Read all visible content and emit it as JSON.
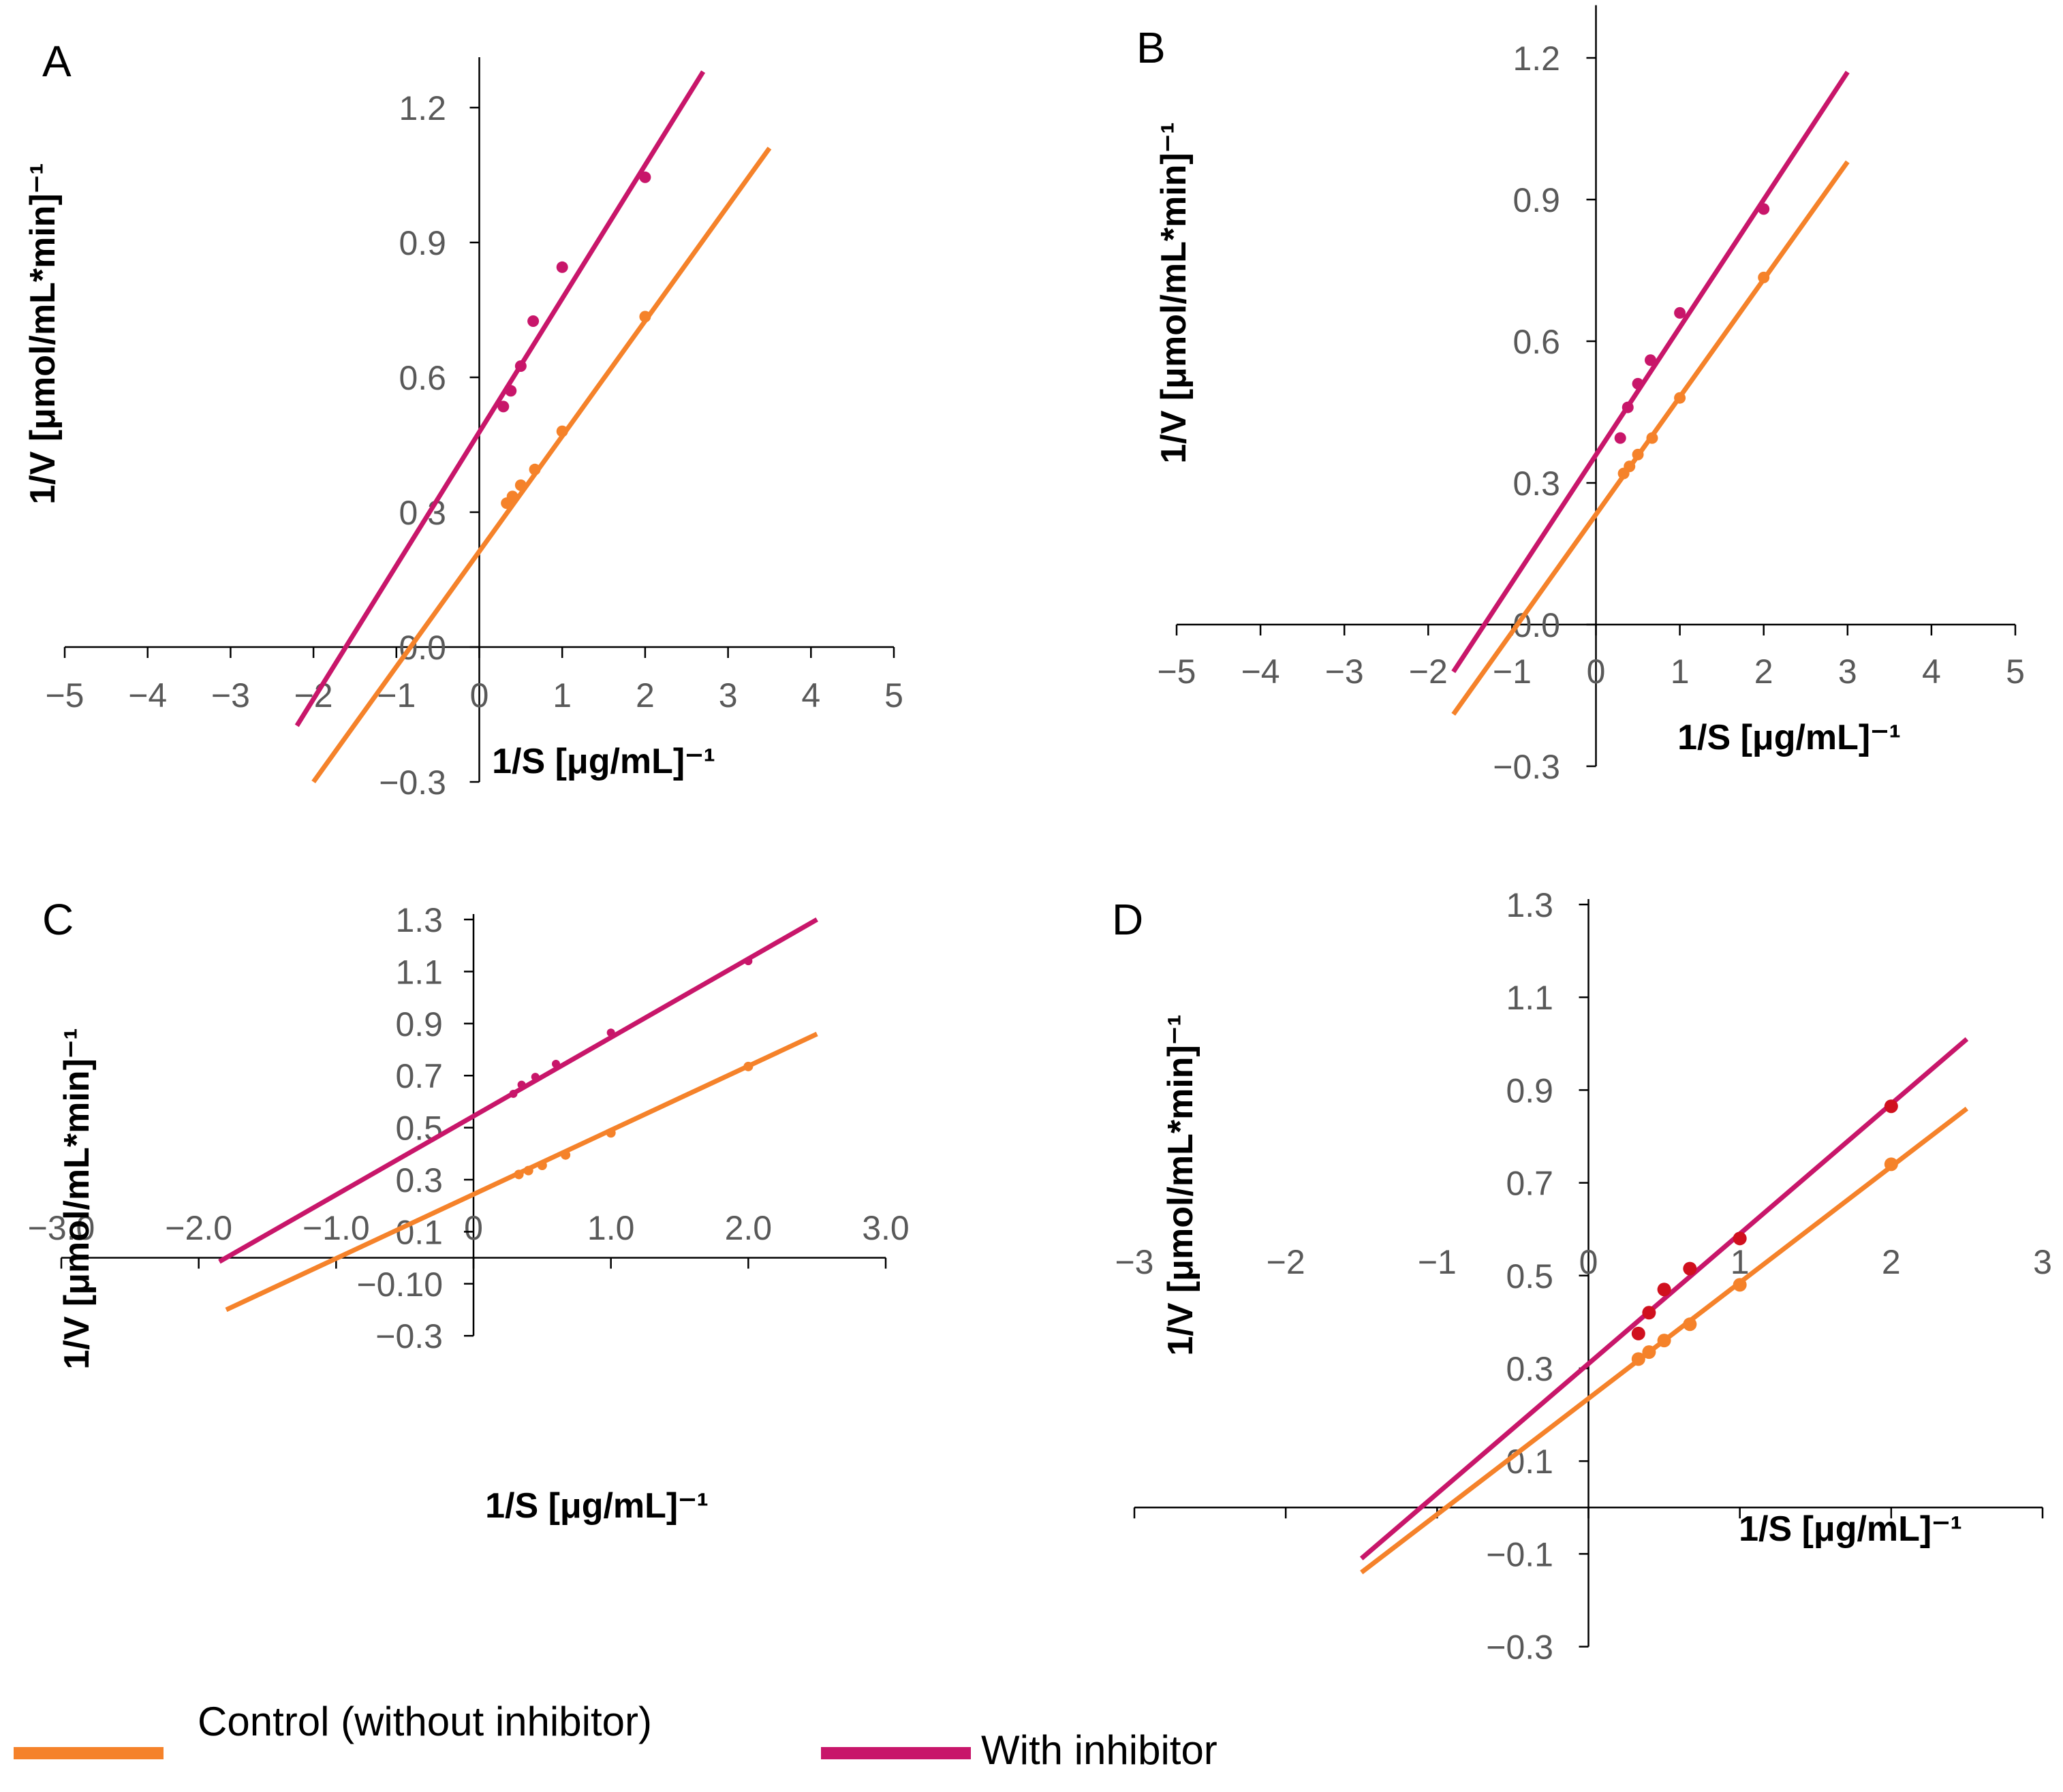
{
  "colors": {
    "control": "#F5822A",
    "inhibitor": "#C8166A",
    "inhibitor_points_d": "#D0101E",
    "axis": "#000000",
    "tick_text": "#595959"
  },
  "legend": {
    "control_label": "Control (without inhibitor)",
    "inhibitor_label": "With inhibitor"
  },
  "chart_data": [
    {
      "panel": "A",
      "type": "scatter",
      "xlabel": "1/S [μg/mL]⁻¹",
      "ylabel": "1/V [μmol/mL*min]⁻¹",
      "xlim": [
        -5,
        5
      ],
      "ylim": [
        -0.3,
        1.3
      ],
      "xticks": [
        -5,
        -4,
        -3,
        -2,
        -1,
        0,
        1,
        2,
        3,
        4,
        5
      ],
      "xtick_labels": [
        "−5",
        "−4",
        "−3",
        "−2",
        "−1",
        "0",
        "1",
        "2",
        "3",
        "4",
        "5"
      ],
      "yticks": [
        -0.3,
        0.0,
        0.3,
        0.6,
        0.9,
        1.2
      ],
      "ytick_labels": [
        "−0.3",
        "0.0",
        "0.3",
        "0.6",
        "0.9",
        "1.2"
      ],
      "series": [
        {
          "name": "Control (without inhibitor)",
          "color": "#F5822A",
          "x": [
            0.33,
            0.4,
            0.5,
            0.67,
            1.0,
            2.0
          ],
          "y": [
            0.32,
            0.335,
            0.36,
            0.395,
            0.48,
            0.735
          ],
          "line": {
            "x": [
              -2.0,
              3.5
            ],
            "y": [
              -0.3,
              1.11
            ]
          }
        },
        {
          "name": "With inhibitor",
          "color": "#C8166A",
          "x": [
            0.29,
            0.38,
            0.5,
            0.65,
            1.0,
            2.0
          ],
          "y": [
            0.535,
            0.57,
            0.625,
            0.725,
            0.845,
            1.045
          ],
          "line": {
            "x": [
              -2.2,
              2.7
            ],
            "y": [
              -0.175,
              1.28
            ]
          }
        }
      ]
    },
    {
      "panel": "B",
      "type": "scatter",
      "xlabel": "1/S [μg/mL]⁻¹",
      "ylabel": "1/V [μmol/mL*min]⁻¹",
      "xlim": [
        -5,
        5
      ],
      "ylim": [
        -0.3,
        1.3
      ],
      "xticks": [
        -5,
        -4,
        -3,
        -2,
        -1,
        0,
        1,
        2,
        3,
        4,
        5
      ],
      "xtick_labels": [
        "−5",
        "−4",
        "−3",
        "−2",
        "−1",
        "0",
        "1",
        "2",
        "3",
        "4",
        "5"
      ],
      "yticks": [
        -0.3,
        0.0,
        0.3,
        0.6,
        0.9,
        1.2
      ],
      "ytick_labels": [
        "−0.3",
        "0.0",
        "0.3",
        "0.6",
        "0.9",
        "1.2"
      ],
      "series": [
        {
          "name": "Control (without inhibitor)",
          "color": "#F5822A",
          "x": [
            0.33,
            0.4,
            0.5,
            0.67,
            1.0,
            2.0
          ],
          "y": [
            0.32,
            0.335,
            0.36,
            0.395,
            0.48,
            0.735
          ],
          "line": {
            "x": [
              -1.7,
              3.0
            ],
            "y": [
              -0.19,
              0.98
            ]
          }
        },
        {
          "name": "With inhibitor",
          "color": "#C8166A",
          "x": [
            0.29,
            0.38,
            0.5,
            0.65,
            1.0,
            2.0
          ],
          "y": [
            0.395,
            0.46,
            0.51,
            0.56,
            0.66,
            0.88
          ],
          "line": {
            "x": [
              -1.7,
              3.0
            ],
            "y": [
              -0.1,
              1.17
            ]
          }
        }
      ]
    },
    {
      "panel": "C",
      "type": "scatter",
      "xlabel": "1/S [μg/mL]⁻¹",
      "ylabel": "1/V  [μmol/mL*min]⁻¹",
      "xlim": [
        -3.0,
        3.0
      ],
      "ylim": [
        -0.3,
        1.3
      ],
      "xticks": [
        -3,
        -2,
        -1,
        0,
        1,
        2,
        3
      ],
      "xtick_labels": [
        "−3.0",
        "−2.0",
        "−1.0",
        "0",
        "1.0",
        "2.0",
        "3.0"
      ],
      "yticks": [
        -0.3,
        -0.1,
        0.1,
        0.3,
        0.5,
        0.7,
        0.9,
        1.1,
        1.3
      ],
      "ytick_labels": [
        "−0.3",
        "−0.10",
        "0.1",
        "0.3",
        "0.5",
        "0.7",
        "0.9",
        "1.1",
        "1.3"
      ],
      "series": [
        {
          "name": "Control (without inhibitor)",
          "color": "#F5822A",
          "x": [
            0.33,
            0.4,
            0.5,
            0.67,
            1.0,
            2.0
          ],
          "y": [
            0.32,
            0.335,
            0.355,
            0.395,
            0.48,
            0.735
          ],
          "line": {
            "x": [
              -1.8,
              2.5
            ],
            "y": [
              -0.2,
              0.86
            ]
          }
        },
        {
          "name": "With inhibitor",
          "color": "#C8166A",
          "x": [
            0.29,
            0.35,
            0.45,
            0.6,
            1.0,
            2.0
          ],
          "y": [
            0.63,
            0.665,
            0.695,
            0.745,
            0.865,
            1.14
          ],
          "line": {
            "x": [
              -1.85,
              2.5
            ],
            "y": [
              -0.015,
              1.3
            ]
          }
        }
      ]
    },
    {
      "panel": "D",
      "type": "scatter",
      "xlabel": "1/S [μg/mL]⁻¹",
      "ylabel": "1/V  [μmol/mL*min]⁻¹",
      "xlim": [
        -3,
        3
      ],
      "ylim": [
        -0.3,
        1.3
      ],
      "xticks": [
        -3,
        -2,
        -1,
        0,
        1,
        2,
        3
      ],
      "xtick_labels": [
        "−3",
        "−2",
        "−1",
        "0",
        "1",
        "2",
        "3"
      ],
      "yticks": [
        -0.3,
        -0.1,
        0.1,
        0.3,
        0.5,
        0.7,
        0.9,
        1.1,
        1.3
      ],
      "ytick_labels": [
        "−0.3",
        "−0.1",
        "0.1",
        "0.3",
        "0.5",
        "0.7",
        "0.9",
        "1.1",
        "1.3"
      ],
      "series": [
        {
          "name": "Control (without inhibitor)",
          "color": "#F5822A",
          "x": [
            0.33,
            0.4,
            0.5,
            0.67,
            1.0,
            2.0
          ],
          "y": [
            0.32,
            0.335,
            0.36,
            0.395,
            0.48,
            0.74
          ],
          "line": {
            "x": [
              -1.5,
              2.5
            ],
            "y": [
              -0.14,
              0.86
            ]
          }
        },
        {
          "name": "With inhibitor",
          "color": "#D0101E",
          "x": [
            0.33,
            0.4,
            0.5,
            0.67,
            1.0,
            2.0
          ],
          "y": [
            0.375,
            0.42,
            0.47,
            0.515,
            0.58,
            0.865
          ],
          "line": {
            "x": [
              -1.5,
              2.5
            ],
            "y": [
              -0.11,
              1.01
            ]
          }
        }
      ]
    }
  ]
}
